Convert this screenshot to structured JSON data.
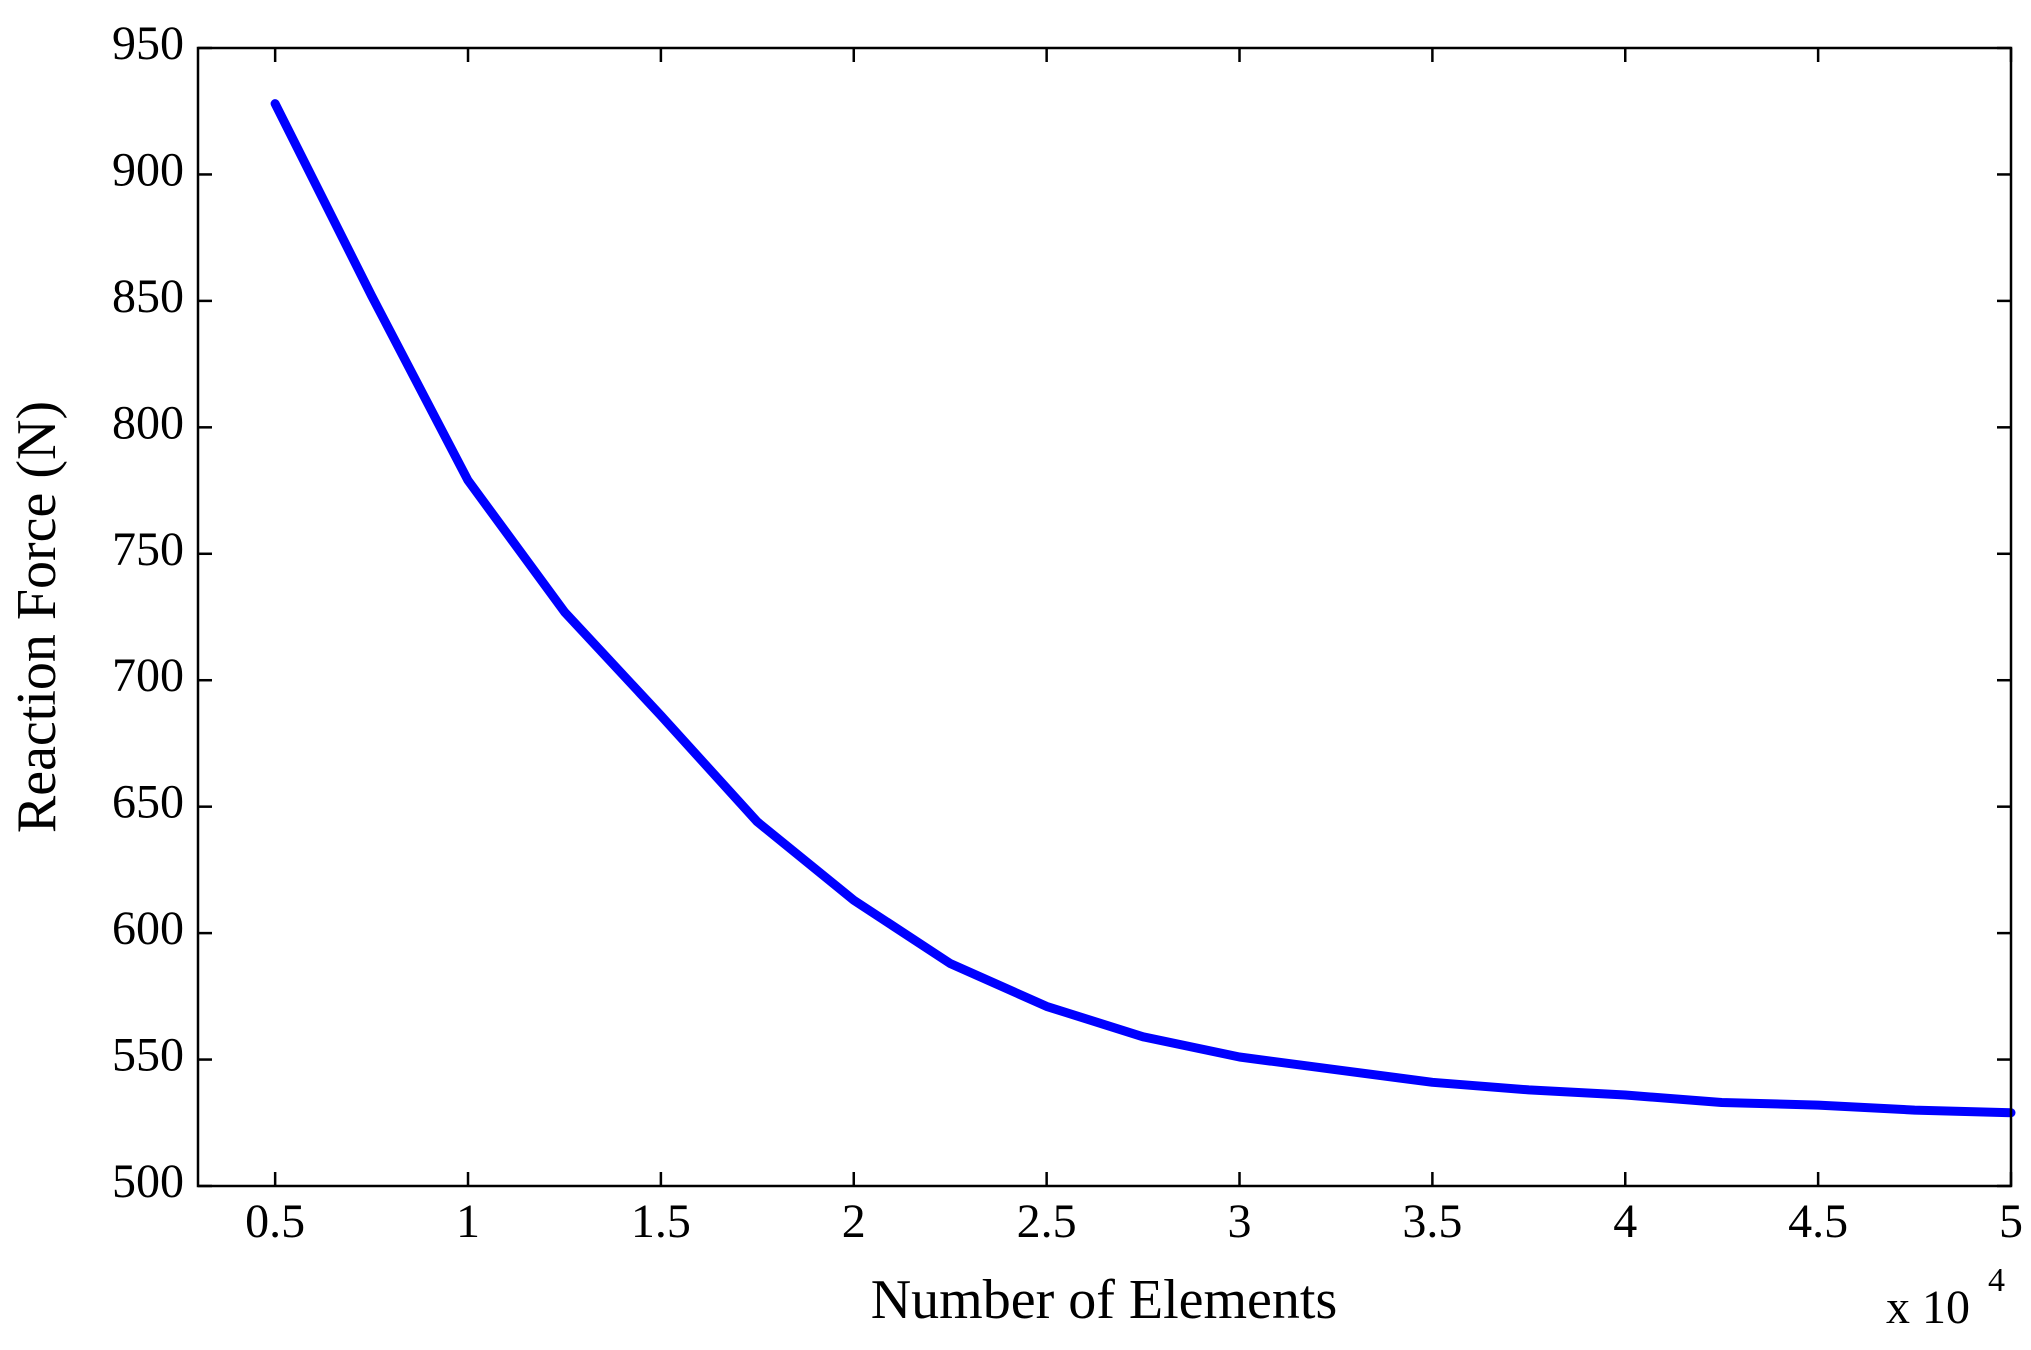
{
  "chart_data": {
    "type": "line",
    "xlabel": "Number of Elements",
    "ylabel": "Reaction Force (N)",
    "x_multiplier": {
      "base": "x 10",
      "exponent": "4"
    },
    "x": [
      0.5,
      0.75,
      1,
      1.25,
      1.5,
      1.75,
      2,
      2.25,
      2.5,
      2.75,
      3,
      3.25,
      3.5,
      3.75,
      4,
      4.25,
      4.5,
      4.75,
      5
    ],
    "series": [
      {
        "name": "Reaction Force",
        "color": "#0000ff",
        "values": [
          928,
          852,
          779,
          727,
          686,
          644,
          613,
          588,
          571,
          559,
          551,
          546,
          541,
          538,
          536,
          533,
          532,
          530,
          529
        ]
      }
    ],
    "xlim": [
      0.3,
      5
    ],
    "xticks": [
      0.5,
      1,
      1.5,
      2,
      2.5,
      3,
      3.5,
      4,
      4.5,
      5
    ],
    "ylim": [
      500,
      950
    ],
    "yticks": [
      500,
      550,
      600,
      650,
      700,
      750,
      800,
      850,
      900,
      950
    ],
    "grid": false
  }
}
